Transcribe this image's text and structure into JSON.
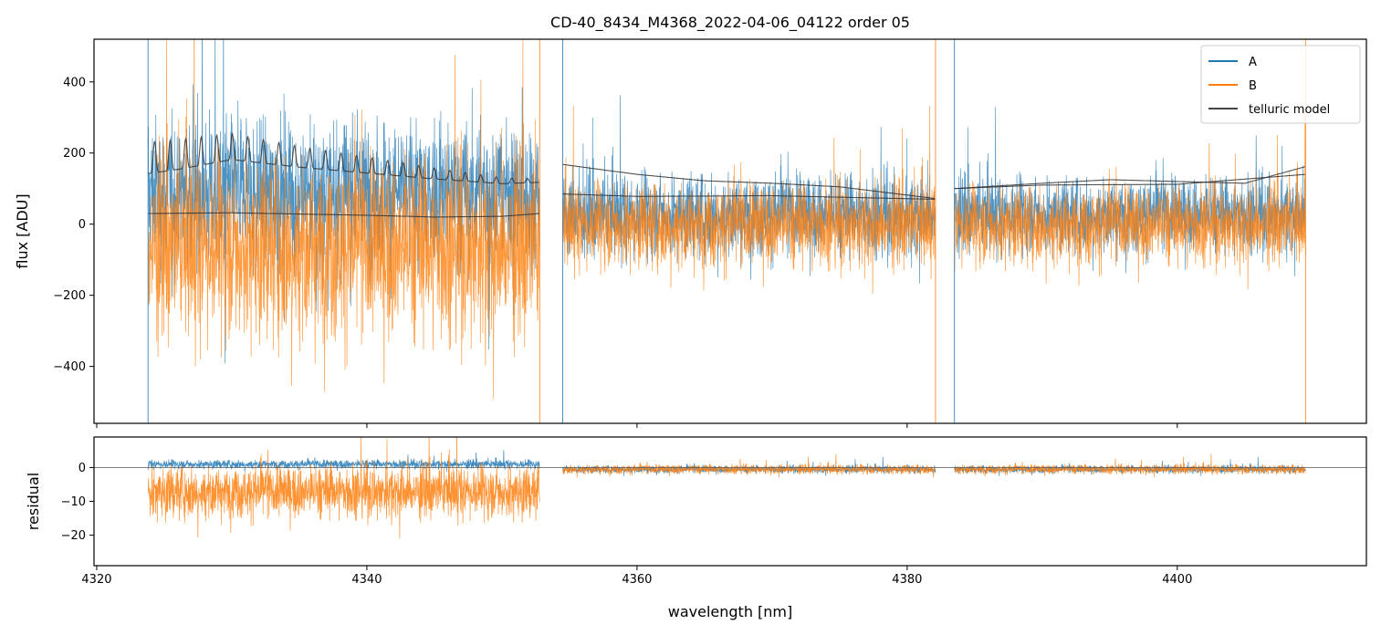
{
  "chart_data": [
    {
      "type": "line",
      "title": "CD-40_8434_M4368_2022-04-06_04122  order 05",
      "xlabel": "",
      "ylabel": "flux [ADU]",
      "xlim": [
        4319.8,
        4414.0
      ],
      "ylim": [
        -560,
        520
      ],
      "yticks": [
        400,
        200,
        0,
        -200,
        -400
      ],
      "ytick_labels": [
        "400",
        "200",
        "0",
        "−200",
        "−400"
      ],
      "xticks": [
        4320,
        4340,
        4360,
        4380,
        4400
      ],
      "segments": [
        [
          4323.8,
          4352.8
        ],
        [
          4354.5,
          4382.1
        ],
        [
          4383.5,
          4409.5
        ]
      ],
      "legend": {
        "position": "upper-right",
        "entries": [
          "A",
          "B",
          "telluric model"
        ]
      },
      "series": [
        {
          "name": "A",
          "color": "#1f77b4",
          "style": "noisy spectrum"
        },
        {
          "name": "B",
          "color": "#ff7f0e",
          "style": "noisy spectrum"
        },
        {
          "name": "telluric model",
          "color": "#333333",
          "upper_x": [
            4323.8,
            4326.0,
            4330.0,
            4335.0,
            4340.0,
            4345.0,
            4350.0,
            4352.8,
            4354.5,
            4360.0,
            4365.0,
            4370.0,
            4375.0,
            4382.1,
            4383.5,
            4390.0,
            4395.0,
            4400.0,
            4405.0,
            4409.5
          ],
          "upper_y": [
            165,
            175,
            200,
            175,
            155,
            135,
            118,
            120,
            168,
            140,
            122,
            115,
            105,
            72,
            100,
            115,
            125,
            120,
            115,
            162
          ],
          "lower_x": [
            4323.8,
            4330.0,
            4340.0,
            4345.0,
            4350.0,
            4352.8,
            4354.5,
            4360.0,
            4370.0,
            4382.1,
            4383.5,
            4390.0,
            4400.0,
            4409.5
          ],
          "lower_y": [
            30,
            32,
            25,
            20,
            22,
            30,
            85,
            78,
            80,
            70,
            100,
            110,
            112,
            140
          ]
        }
      ]
    },
    {
      "type": "line",
      "title": "",
      "xlabel": "wavelength [nm]",
      "ylabel": "residual",
      "xlim": [
        4319.8,
        4414.0
      ],
      "ylim": [
        -29,
        9
      ],
      "yticks": [
        0,
        -10,
        -20
      ],
      "ytick_labels": [
        "0",
        "−10",
        "−20"
      ],
      "xticks": [
        4320,
        4340,
        4360,
        4380,
        4400
      ],
      "xtick_labels": [
        "4320",
        "4340",
        "4360",
        "4380",
        "4400"
      ],
      "reference_line": 0,
      "series": [
        {
          "name": "A",
          "color": "#1f77b4"
        },
        {
          "name": "B",
          "color": "#ff7f0e"
        }
      ]
    }
  ]
}
